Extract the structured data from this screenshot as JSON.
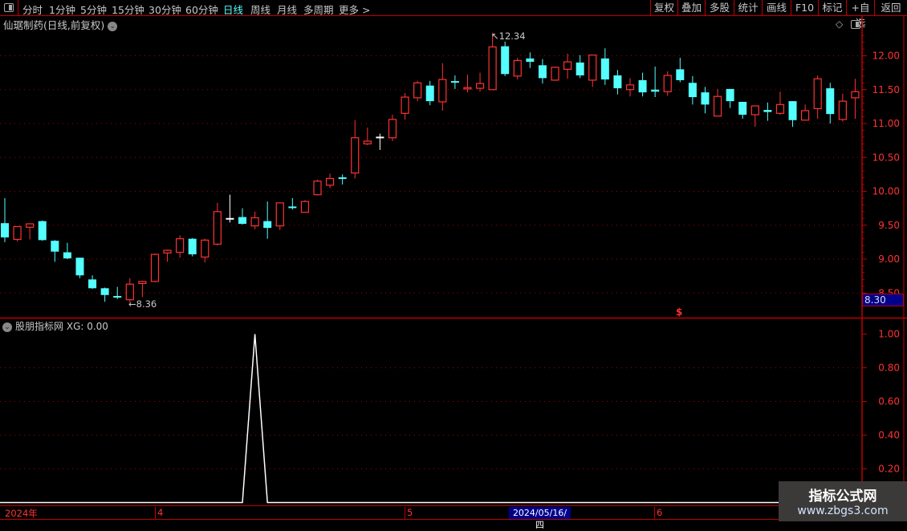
{
  "toolbar": {
    "periods": [
      "分时",
      "1分钟",
      "5分钟",
      "15分钟",
      "30分钟",
      "60分钟",
      "日线",
      "周线",
      "月线",
      "多周期",
      "更多 >"
    ],
    "active_period": "日线",
    "right_buttons": [
      "复权",
      "叠加",
      "多股",
      "统计",
      "画线",
      "F10",
      "标记",
      "+自选",
      "返回"
    ]
  },
  "chart": {
    "title": "仙琚制药(日线,前复权)",
    "price_axis": [
      "12.00",
      "11.50",
      "11.00",
      "10.50",
      "10.00",
      "9.50",
      "9.00",
      "8.50"
    ],
    "cursor_price": "8.30",
    "high_marker": "12.34",
    "low_marker": "8.36",
    "signal_symbol": "$",
    "colors": {
      "up": "#ff3232",
      "down": "#54ffff",
      "flat": "#ffffff",
      "grid": "#a00000",
      "axis": "#c00000",
      "highlight": "#00008b"
    }
  },
  "chart_data": {
    "type": "candlestick",
    "ylim": [
      8.3,
      12.45
    ],
    "ohlc": [
      [
        9.53,
        9.32,
        9.9,
        9.25
      ],
      [
        9.29,
        9.48,
        9.48,
        9.26
      ],
      [
        9.47,
        9.52,
        9.53,
        9.29
      ],
      [
        9.56,
        9.28,
        9.57,
        9.27
      ],
      [
        9.27,
        9.11,
        9.28,
        8.96
      ],
      [
        9.1,
        9.01,
        9.24,
        9.0
      ],
      [
        9.02,
        8.76,
        9.02,
        8.72
      ],
      [
        8.7,
        8.57,
        8.76,
        8.56
      ],
      [
        8.57,
        8.47,
        8.58,
        8.37
      ],
      [
        8.45,
        8.44,
        8.59,
        8.41
      ],
      [
        8.4,
        8.63,
        8.72,
        8.36
      ],
      [
        8.64,
        8.67,
        8.68,
        8.44
      ],
      [
        8.67,
        9.07,
        9.08,
        8.66
      ],
      [
        9.09,
        9.13,
        9.14,
        8.96
      ],
      [
        9.1,
        9.3,
        9.35,
        9.02
      ],
      [
        9.3,
        9.07,
        9.31,
        9.04
      ],
      [
        9.03,
        9.28,
        9.3,
        8.95
      ],
      [
        9.22,
        9.7,
        9.83,
        9.2
      ],
      [
        9.6,
        9.6,
        9.95,
        9.54
      ],
      [
        9.62,
        9.52,
        9.75,
        9.51
      ],
      [
        9.49,
        9.61,
        9.7,
        9.44
      ],
      [
        9.56,
        9.46,
        9.85,
        9.3
      ],
      [
        9.49,
        9.83,
        9.83,
        9.43
      ],
      [
        9.77,
        9.76,
        9.9,
        9.73
      ],
      [
        9.69,
        9.85,
        9.87,
        9.69
      ],
      [
        9.95,
        10.15,
        10.17,
        9.94
      ],
      [
        10.09,
        10.19,
        10.26,
        10.05
      ],
      [
        10.2,
        10.19,
        10.25,
        10.1
      ],
      [
        10.27,
        10.79,
        11.05,
        10.19
      ],
      [
        10.7,
        10.74,
        10.94,
        10.68
      ],
      [
        10.8,
        10.8,
        10.85,
        10.61
      ],
      [
        10.79,
        11.06,
        11.13,
        10.74
      ],
      [
        11.15,
        11.39,
        11.45,
        11.06
      ],
      [
        11.38,
        11.6,
        11.63,
        11.33
      ],
      [
        11.56,
        11.33,
        11.63,
        11.27
      ],
      [
        11.32,
        11.65,
        11.89,
        11.19
      ],
      [
        11.62,
        11.61,
        11.71,
        11.51
      ],
      [
        11.51,
        11.53,
        11.72,
        11.46
      ],
      [
        11.52,
        11.59,
        11.75,
        11.47
      ],
      [
        11.5,
        12.13,
        12.34,
        11.5
      ],
      [
        12.14,
        11.73,
        12.21,
        11.7
      ],
      [
        11.7,
        11.93,
        11.97,
        11.65
      ],
      [
        11.96,
        11.91,
        12.05,
        11.82
      ],
      [
        11.86,
        11.67,
        11.95,
        11.59
      ],
      [
        11.64,
        11.83,
        11.84,
        11.63
      ],
      [
        11.8,
        11.91,
        12.03,
        11.66
      ],
      [
        11.9,
        11.71,
        12.01,
        11.67
      ],
      [
        11.64,
        12.01,
        12.01,
        11.54
      ],
      [
        11.96,
        11.65,
        12.11,
        11.57
      ],
      [
        11.71,
        11.52,
        11.79,
        11.43
      ],
      [
        11.5,
        11.57,
        11.67,
        11.4
      ],
      [
        11.64,
        11.46,
        11.75,
        11.4
      ],
      [
        11.5,
        11.47,
        11.84,
        11.39
      ],
      [
        11.47,
        11.71,
        11.77,
        11.41
      ],
      [
        11.8,
        11.64,
        11.97,
        11.61
      ],
      [
        11.6,
        11.39,
        11.7,
        11.28
      ],
      [
        11.46,
        11.28,
        11.54,
        11.15
      ],
      [
        11.11,
        11.4,
        11.51,
        11.11
      ],
      [
        11.51,
        11.33,
        11.51,
        11.23
      ],
      [
        11.32,
        11.13,
        11.32,
        11.07
      ],
      [
        11.13,
        11.26,
        11.26,
        10.95
      ],
      [
        11.2,
        11.17,
        11.31,
        11.04
      ],
      [
        11.15,
        11.28,
        11.47,
        11.13
      ],
      [
        11.33,
        11.05,
        11.33,
        10.95
      ],
      [
        11.05,
        11.19,
        11.28,
        11.05
      ],
      [
        11.22,
        11.66,
        11.71,
        11.07
      ],
      [
        11.52,
        11.14,
        11.6,
        11.0
      ],
      [
        11.06,
        11.33,
        11.44,
        11.03
      ],
      [
        11.38,
        11.47,
        11.66,
        11.07
      ]
    ],
    "indicator": {
      "name": "股朋指标网",
      "series_label": "XG: 0.00",
      "ylim": [
        0,
        1.05
      ],
      "axis": [
        "1.00",
        "0.80",
        "0.60",
        "0.40",
        "0.20"
      ],
      "signal_index": 20
    }
  },
  "date_axis": {
    "year": "2024年",
    "months": [
      "4",
      "5",
      "6"
    ],
    "cursor_date": "2024/05/16/四"
  },
  "watermark": {
    "line1": "指标公式网",
    "line2": "www.zbgs3.com"
  }
}
